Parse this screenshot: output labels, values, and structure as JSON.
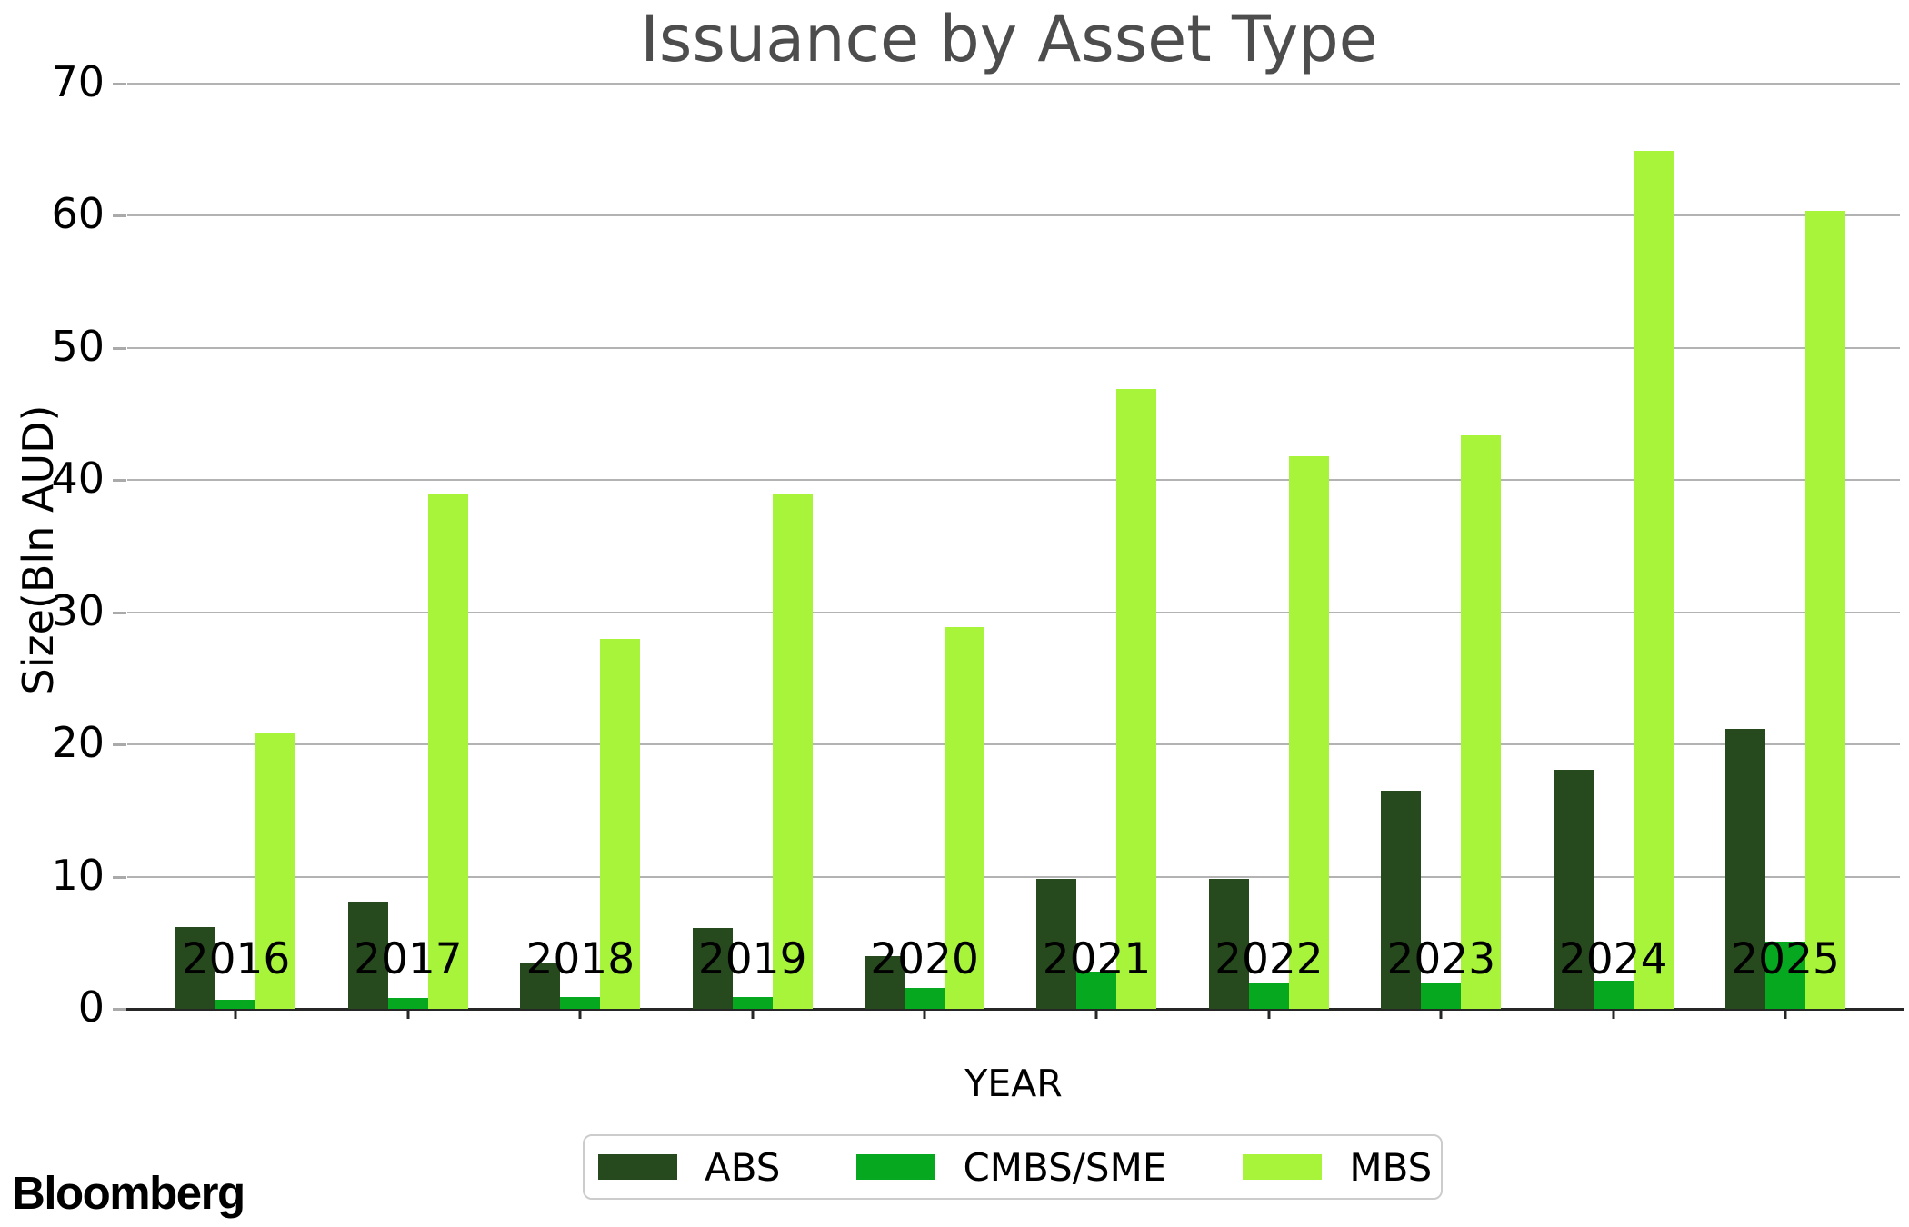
{
  "branding": {
    "logo_text": "Bloomberg"
  },
  "chart_data": {
    "type": "bar",
    "title": "Issuance by Asset Type",
    "xlabel": "YEAR",
    "ylabel": "Size(Bln AUD)",
    "ylim": [
      0,
      70
    ],
    "yticks": [
      0,
      10,
      20,
      30,
      40,
      50,
      60,
      70
    ],
    "grid": "horizontal",
    "legend_position": "bottom",
    "categories": [
      "2016",
      "2017",
      "2018",
      "2019",
      "2020",
      "2021",
      "2022",
      "2023",
      "2024",
      "2025"
    ],
    "series": [
      {
        "name": "ABS",
        "color": "#264a1d",
        "values": [
          6.2,
          8.1,
          3.5,
          6.1,
          4.0,
          9.8,
          9.8,
          16.5,
          18.1,
          21.2
        ]
      },
      {
        "name": "CMBS/SME",
        "color": "#05a81e",
        "values": [
          0.7,
          0.8,
          0.9,
          0.9,
          1.6,
          2.8,
          1.9,
          2.0,
          2.1,
          5.1
        ]
      },
      {
        "name": "MBS",
        "color": "#a8f43a",
        "values": [
          20.9,
          39.0,
          28.0,
          39.0,
          28.9,
          46.9,
          41.8,
          43.4,
          64.9,
          60.4
        ]
      }
    ],
    "style": {
      "title_color": "#4d4d4d",
      "gridline_color": "#b3b3b3",
      "axis_color": "#262626",
      "text_color": "#000000",
      "legend_border_color": "#cccccc"
    }
  }
}
